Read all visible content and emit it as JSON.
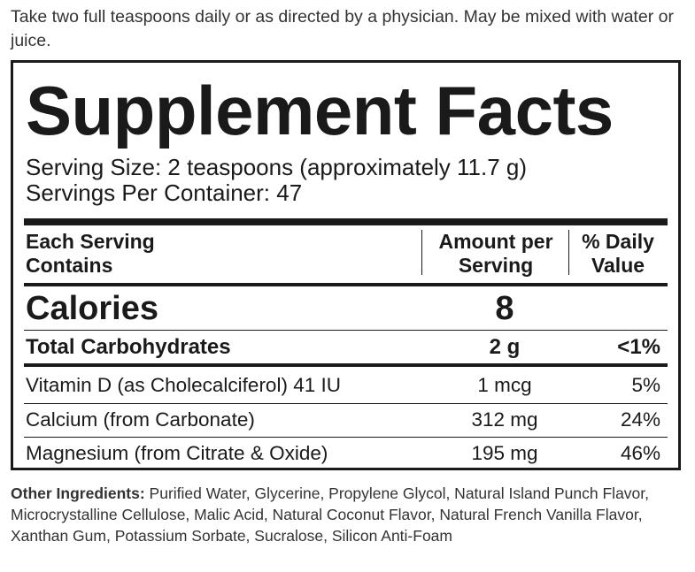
{
  "directions": "Take two full teaspoons daily or as directed by a physician. May be mixed with water or juice.",
  "panel": {
    "title": "Supplement Facts",
    "serving_size": "Serving Size: 2 teaspoons (approximately 11.7 g)",
    "servings_per_container": "Servings Per Container: 47",
    "header": {
      "col1_line1": "Each Serving",
      "col1_line2": "Contains",
      "col2_line1": "Amount per",
      "col2_line2": "Serving",
      "col3_line1": "% Daily",
      "col3_line2": "Value"
    },
    "calories": {
      "label": "Calories",
      "amount": "8"
    },
    "carbs": {
      "label": "Total Carbohydrates",
      "amount": "2 g",
      "dv": "<1%"
    },
    "nutrients": [
      {
        "name": "Vitamin D (as Cholecalciferol) 41 IU",
        "amount": "1 mcg",
        "dv": "5%"
      },
      {
        "name": "Calcium (from Carbonate)",
        "amount": "312 mg",
        "dv": "24%"
      },
      {
        "name": "Magnesium (from Citrate & Oxide)",
        "amount": "195 mg",
        "dv": "46%"
      }
    ]
  },
  "other_ingredients": {
    "label": "Other Ingredients:",
    "text": " Purified Water, Glycerine, Propylene Glycol, Natural Island Punch Flavor, Microcrystalline Cellulose, Malic Acid, Natural Coconut Flavor, Natural French Vanilla Flavor, Xanthan Gum, Potassium Sorbate, Sucralose, Silicon Anti-Foam"
  }
}
